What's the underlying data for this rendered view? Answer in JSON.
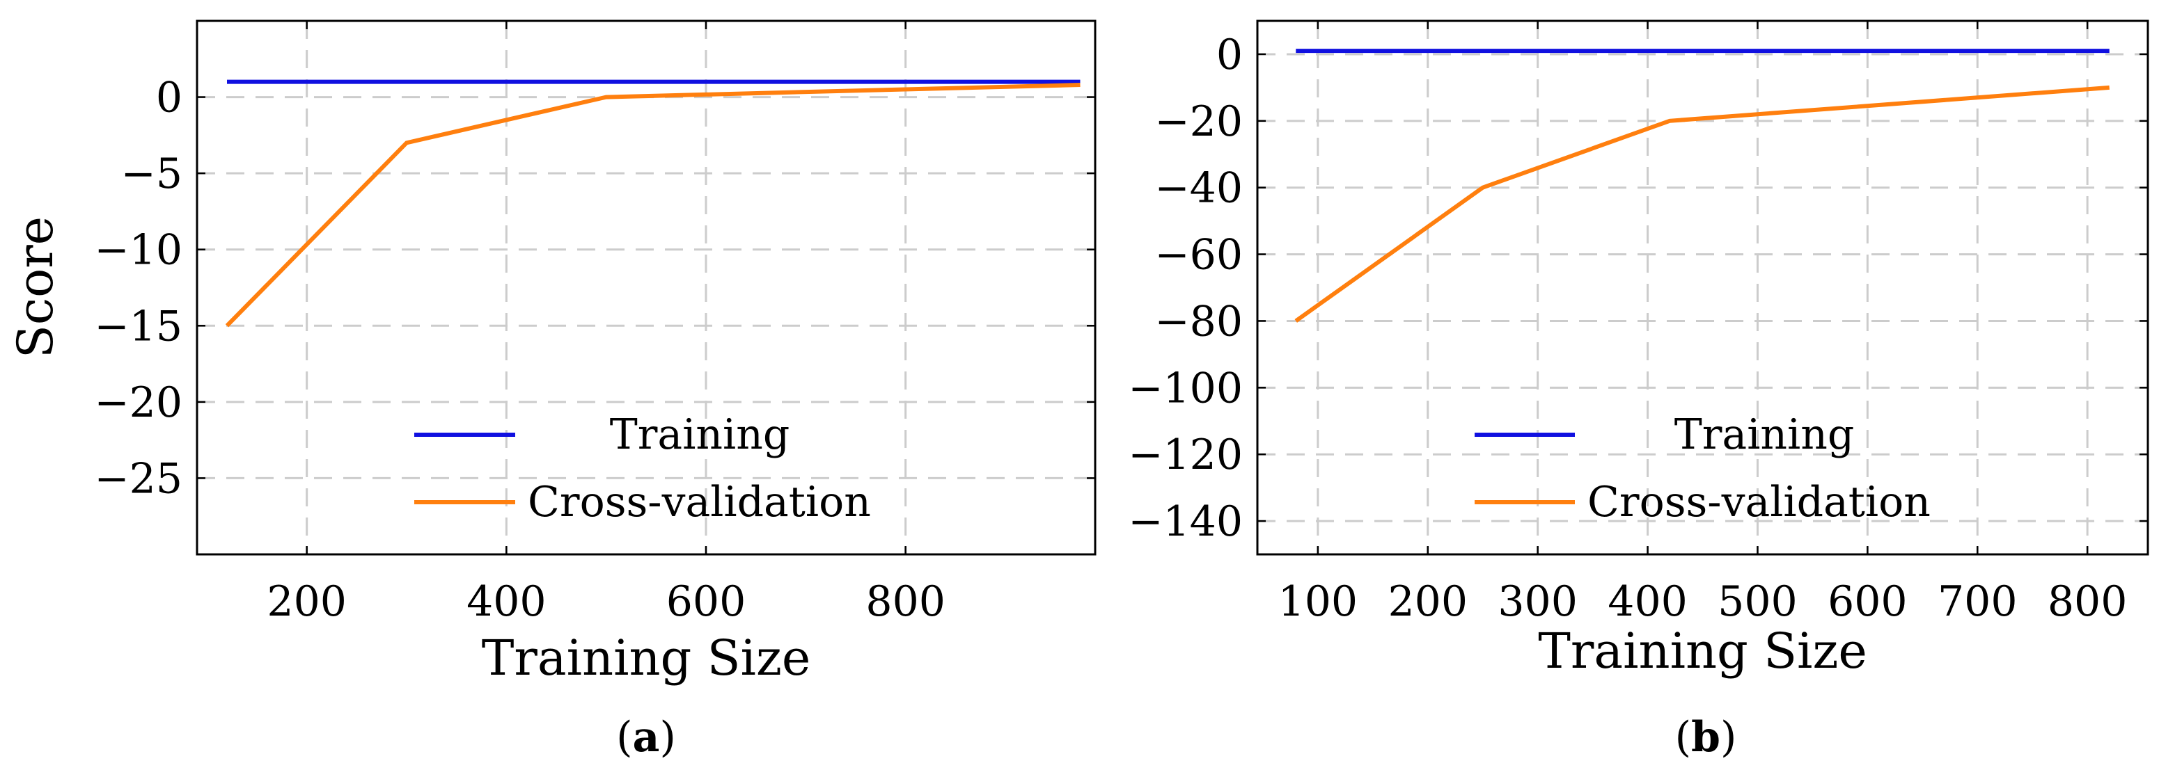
{
  "chart_data": [
    {
      "type": "line",
      "panel_label": "a",
      "xlabel": "Training Size",
      "ylabel": "Score",
      "xlim": [
        90,
        990
      ],
      "ylim": [
        -30,
        5
      ],
      "xticks": [
        200,
        400,
        600,
        800
      ],
      "yticks": [
        0,
        -5,
        -10,
        -15,
        -20,
        -25
      ],
      "ytick_labels": [
        "0",
        "−5",
        "−10",
        "−15",
        "−20",
        "−25"
      ],
      "grid": true,
      "legend_position": "bottom-center",
      "series": [
        {
          "name": "Training",
          "color": "#1010e0",
          "x": [
            120,
            975
          ],
          "y": [
            1,
            1
          ]
        },
        {
          "name": "Cross-validation",
          "color": "#ff7f0e",
          "x": [
            120,
            300,
            500,
            975
          ],
          "y": [
            -15,
            -3,
            0,
            0.8
          ]
        }
      ]
    },
    {
      "type": "line",
      "panel_label": "b",
      "xlabel": "Training Size",
      "ylabel": "",
      "xlim": [
        45,
        855
      ],
      "ylim": [
        -150,
        10
      ],
      "xticks": [
        100,
        200,
        300,
        400,
        500,
        600,
        700,
        800
      ],
      "yticks": [
        0,
        -20,
        -40,
        -60,
        -80,
        -100,
        -120,
        -140
      ],
      "ytick_labels": [
        "0",
        "−20",
        "−40",
        "−60",
        "−80",
        "−100",
        "−120",
        "−140"
      ],
      "grid": true,
      "legend_position": "bottom-center",
      "series": [
        {
          "name": "Training",
          "color": "#1010e0",
          "x": [
            80,
            820
          ],
          "y": [
            1,
            1
          ]
        },
        {
          "name": "Cross-validation",
          "color": "#ff7f0e",
          "x": [
            80,
            250,
            420,
            820
          ],
          "y": [
            -80,
            -40,
            -20,
            -10
          ]
        }
      ]
    }
  ]
}
